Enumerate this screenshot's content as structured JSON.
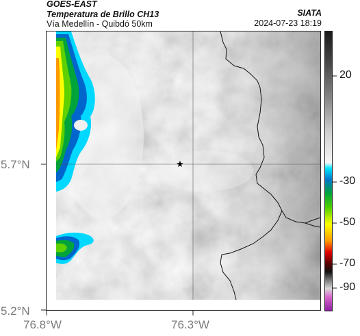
{
  "header": {
    "satellite": "GOES-EAST",
    "product": "Temperatura de Brillo CH13",
    "route": "Vía Medellín - Quibdó 50km",
    "agency": "SIATA",
    "datetime": "2024-07-23 18:19"
  },
  "map": {
    "lat_ticks": [
      "5.7°N",
      "5.2°N"
    ],
    "lon_ticks": [
      "76.8°W",
      "76.3°W"
    ],
    "marker": "star",
    "gridlines": true
  },
  "colorbar": {
    "labels": [
      "20",
      "-30",
      "-50",
      "-70",
      "-90"
    ]
  }
}
